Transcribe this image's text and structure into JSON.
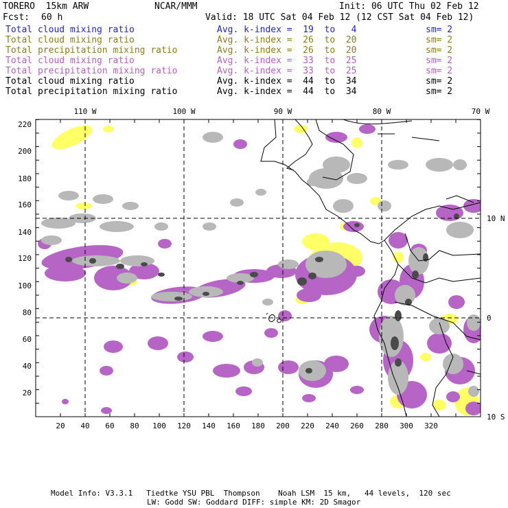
{
  "header": {
    "model": "TORERO  15km ARW",
    "org": "NCAR/MMM",
    "init": "Init: 06 UTC Thu 02 Feb 12",
    "fcst_label": "Fcst:",
    "fcst_value": "60 h",
    "valid": "Valid: 18 UTC Sat 04 Feb 12 (12 CST Sat 04 Feb 12)"
  },
  "legend": [
    {
      "field": "Total cloud mixing ratio",
      "kindex": "Avg. k-index =  19  to   4",
      "sm": "sm= 2",
      "color": "#1f1fd0"
    },
    {
      "field": "Total cloud mixing ratio",
      "kindex": "Avg. k-index =  26  to  20",
      "sm": "sm= 2",
      "color": "#8a7d1a"
    },
    {
      "field": "Total precipitation mixing ratio",
      "kindex": "Avg. k-index =  26  to  20",
      "sm": "sm= 2",
      "color": "#8a7d1a"
    },
    {
      "field": "Total cloud mixing ratio",
      "kindex": "Avg. k-index =  33  to  25",
      "sm": "sm= 2",
      "color": "#b55fc0"
    },
    {
      "field": "Total precipitation mixing ratio",
      "kindex": "Avg. k-index =  33  to  25",
      "sm": "sm= 2",
      "color": "#b55fc0"
    },
    {
      "field": "Total cloud mixing ratio",
      "kindex": "Avg. k-index =  44  to  34",
      "sm": "sm= 2",
      "color": "#000000"
    },
    {
      "field": "Total precipitation mixing ratio",
      "kindex": "Avg. k-index =  44  to  34",
      "sm": "sm= 2",
      "color": "#000000"
    }
  ],
  "map": {
    "top_lon_labels": [
      "110 W",
      "100 W",
      "90 W",
      "80 W",
      "70 W"
    ],
    "right_lat_labels": [
      "10 N",
      "0",
      "10 S"
    ],
    "y_ticks": [
      "220",
      "200",
      "180",
      "160",
      "140",
      "120",
      "100",
      "80",
      "60",
      "40",
      "20"
    ],
    "x_ticks": [
      "20",
      "40",
      "60",
      "80",
      "100",
      "120",
      "140",
      "160",
      "180",
      "200",
      "220",
      "240",
      "260",
      "280",
      "300",
      "320"
    ],
    "colors": {
      "purple": "#b664c6",
      "yellow": "#ffff66",
      "gray": "#b8b8b8",
      "dark": "#4a4a4a",
      "coast": "#000000"
    }
  },
  "footer": {
    "line1": "Model Info: V3.3.1   Tiedtke YSU PBL  Thompson    Noah LSM  15 km,   44 levels,  120 sec",
    "line2": "LW: Godd SW: Goddard DIFF: simple KM: 2D Smagor"
  }
}
